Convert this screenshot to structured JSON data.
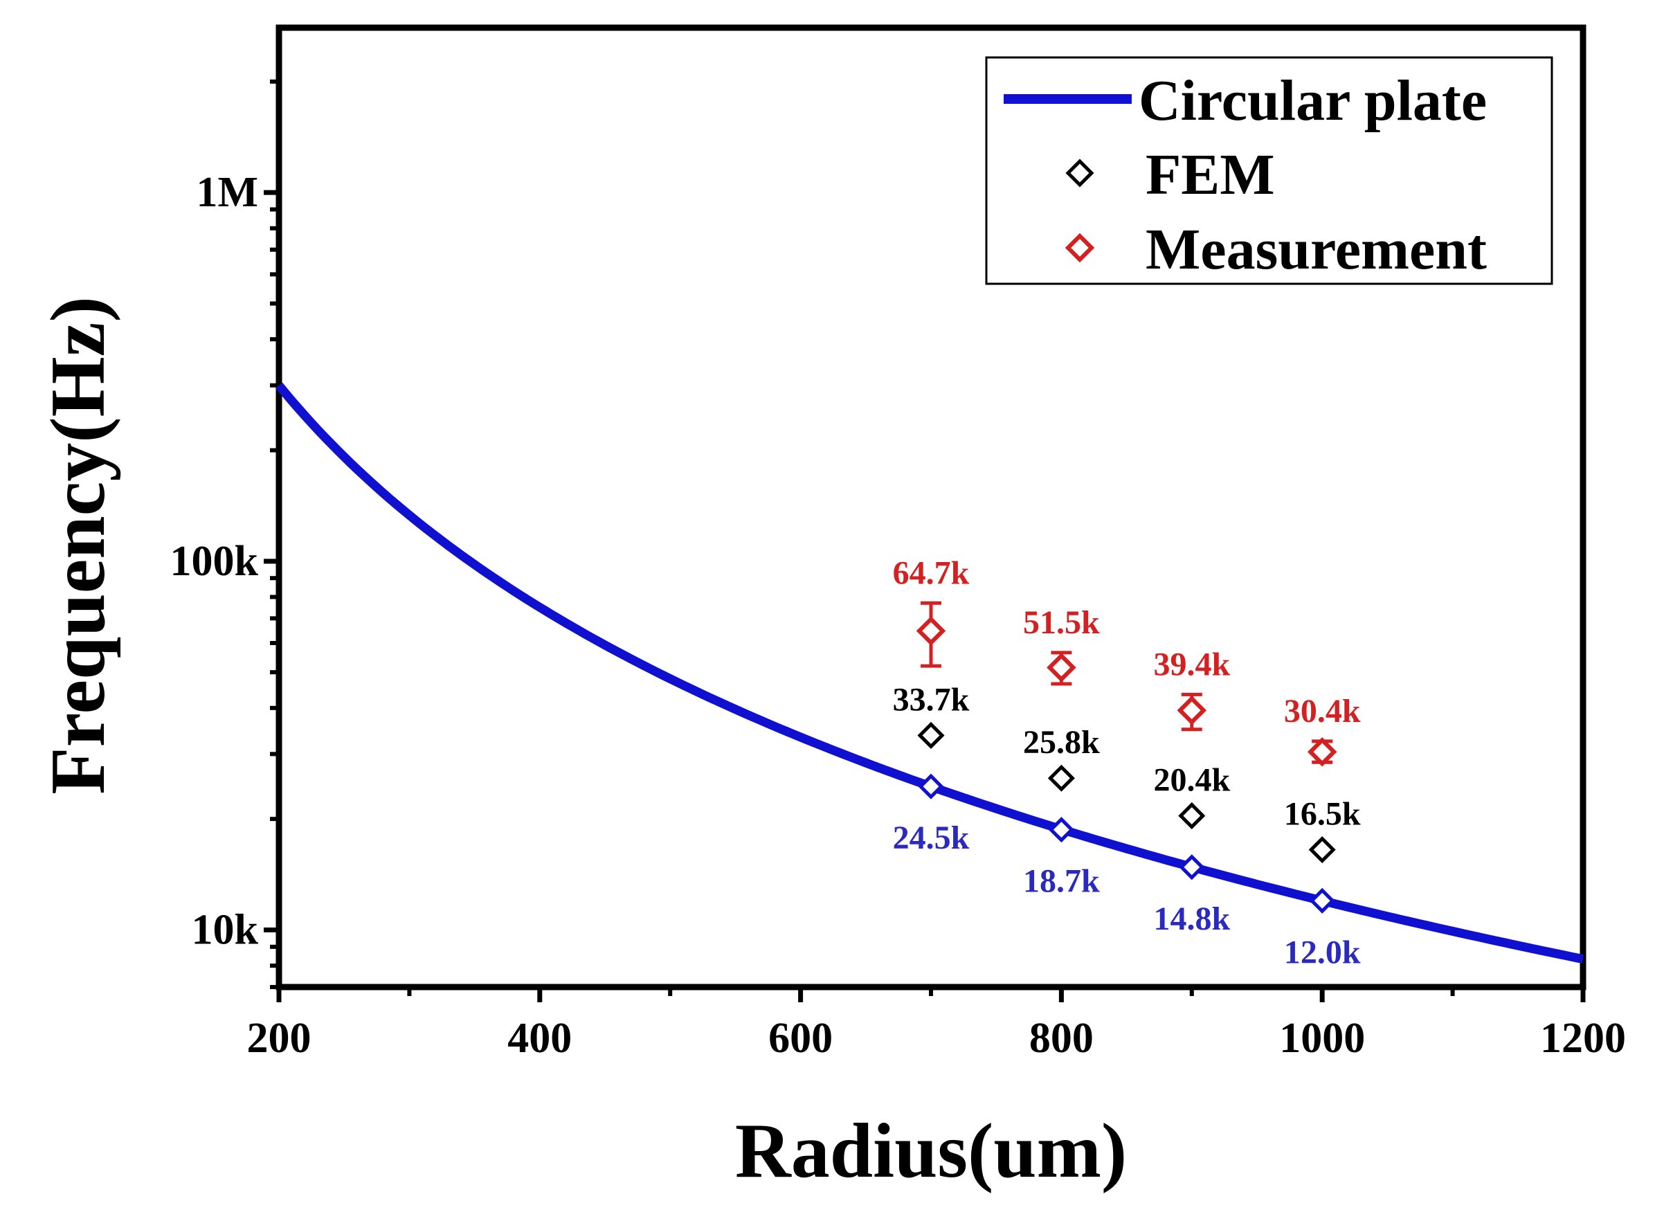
{
  "chart_data": {
    "type": "line",
    "xlabel": "Radius(um)",
    "ylabel": "Frequency(Hz)",
    "xlim": [
      200,
      1200
    ],
    "ylim": [
      7000,
      2800000
    ],
    "y_scale": "log",
    "x_ticks": [
      200,
      400,
      600,
      800,
      1000,
      1200
    ],
    "x_tick_labels": [
      "200",
      "400",
      "600",
      "800",
      "1000",
      "1200"
    ],
    "y_ticks": [
      10000,
      100000,
      1000000
    ],
    "y_tick_labels": [
      "10k",
      "100k",
      "1M"
    ],
    "legend_position": "top-right",
    "legend": [
      "Circular plate",
      "FEM",
      "Measurement"
    ],
    "colors": {
      "circular_plate": "#1010d0",
      "fem": "#000000",
      "measurement": "#d42020",
      "circular_labels": "#2a2ac0"
    },
    "series": [
      {
        "name": "Circular plate",
        "kind": "line",
        "model": "f = k / r^2",
        "k": 12000000000,
        "x_range": [
          200,
          1200
        ],
        "points": [
          {
            "x": 700,
            "y": 24500,
            "label": "24.5k"
          },
          {
            "x": 800,
            "y": 18700,
            "label": "18.7k"
          },
          {
            "x": 900,
            "y": 14800,
            "label": "14.8k"
          },
          {
            "x": 1000,
            "y": 12000,
            "label": "12.0k"
          }
        ]
      },
      {
        "name": "FEM",
        "kind": "scatter",
        "points": [
          {
            "x": 700,
            "y": 33700,
            "label": "33.7k"
          },
          {
            "x": 800,
            "y": 25800,
            "label": "25.8k"
          },
          {
            "x": 900,
            "y": 20400,
            "label": "20.4k"
          },
          {
            "x": 1000,
            "y": 16500,
            "label": "16.5k"
          }
        ]
      },
      {
        "name": "Measurement",
        "kind": "scatter",
        "points": [
          {
            "x": 700,
            "y": 64700,
            "label": "64.7k",
            "err_low": 52000,
            "err_high": 77000
          },
          {
            "x": 800,
            "y": 51500,
            "label": "51.5k",
            "err_low": 46500,
            "err_high": 56500
          },
          {
            "x": 900,
            "y": 39400,
            "label": "39.4k",
            "err_low": 35000,
            "err_high": 43500
          },
          {
            "x": 1000,
            "y": 30400,
            "label": "30.4k",
            "err_low": 28500,
            "err_high": 32500
          }
        ]
      }
    ]
  }
}
